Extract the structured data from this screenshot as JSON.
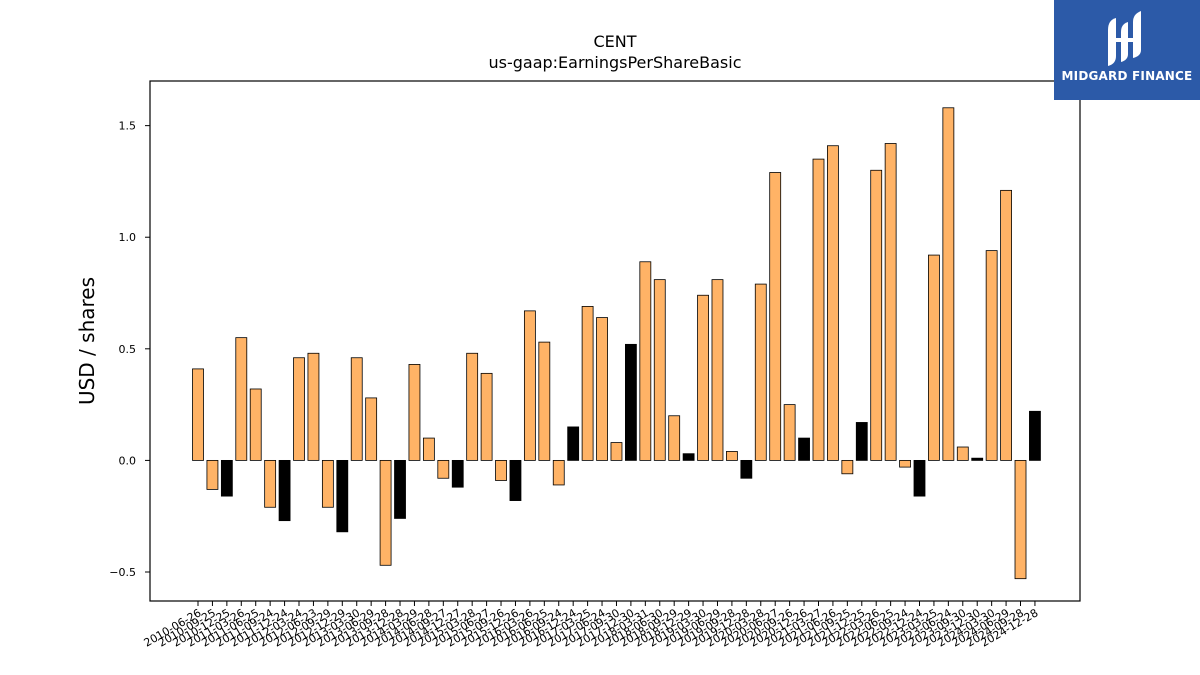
{
  "chart_title": "CENT",
  "chart_subtitle": "us-gaap:EarningsPerShareBasic",
  "brand": {
    "name": "MIDGARD FINANCE",
    "color": "#2c5aa8"
  },
  "colors": {
    "bar_primary": "#ffb366",
    "bar_alternate": "#000000",
    "bar_edge": "#000000"
  },
  "chart_data": {
    "type": "bar",
    "title": "CENT",
    "subtitle": "us-gaap:EarningsPerShareBasic",
    "xlabel": "",
    "ylabel": "USD / shares",
    "ylim": [
      -0.63,
      1.7
    ],
    "yticks": [
      -0.5,
      0.0,
      0.5,
      1.0,
      1.5
    ],
    "ytick_labels": [
      "−0.5",
      "0.0",
      "0.5",
      "1.0",
      "1.5"
    ],
    "grid": false,
    "legend": "none",
    "categories": [
      "2010-06-26",
      "2010-09-25",
      "2010-12-25",
      "2011-03-26",
      "2011-06-25",
      "2011-09-24",
      "2011-12-24",
      "2012-03-24",
      "2012-06-23",
      "2012-09-29",
      "2012-12-29",
      "2013-03-30",
      "2013-06-29",
      "2013-09-28",
      "2013-12-28",
      "2014-03-29",
      "2014-06-28",
      "2014-09-27",
      "2014-12-27",
      "2015-03-28",
      "2015-06-27",
      "2015-09-26",
      "2015-12-26",
      "2016-03-26",
      "2016-06-25",
      "2016-09-24",
      "2016-12-24",
      "2017-03-25",
      "2017-06-24",
      "2017-09-30",
      "2017-12-30",
      "2018-03-31",
      "2018-06-30",
      "2018-09-29",
      "2018-12-29",
      "2019-03-30",
      "2019-06-29",
      "2019-09-28",
      "2019-12-28",
      "2020-03-28",
      "2020-06-27",
      "2020-09-26",
      "2020-12-26",
      "2021-03-27",
      "2021-06-26",
      "2021-09-25",
      "2021-12-25",
      "2022-03-26",
      "2022-06-25",
      "2022-09-24",
      "2022-12-24",
      "2023-03-25",
      "2023-06-24",
      "2023-09-30",
      "2023-12-30",
      "2024-03-30",
      "2024-06-29",
      "2024-09-28",
      "2024-12-28"
    ],
    "values": [
      0.41,
      -0.13,
      -0.16,
      0.55,
      0.32,
      -0.21,
      -0.27,
      0.46,
      0.48,
      -0.21,
      -0.32,
      0.46,
      0.28,
      -0.47,
      -0.26,
      0.43,
      0.1,
      -0.08,
      -0.12,
      0.48,
      0.39,
      -0.09,
      -0.18,
      0.67,
      0.53,
      -0.11,
      0.15,
      0.69,
      0.64,
      0.08,
      0.52,
      0.89,
      0.81,
      0.2,
      0.03,
      0.74,
      0.81,
      0.04,
      -0.08,
      0.79,
      1.29,
      0.25,
      0.1,
      1.35,
      1.41,
      -0.06,
      0.17,
      1.3,
      1.42,
      -0.03,
      -0.16,
      0.92,
      1.58,
      0.06,
      0.01,
      0.94,
      1.21,
      -0.53,
      0.22
    ],
    "bar_colors": [
      "#ffb366",
      "#ffb366",
      "#000000",
      "#ffb366",
      "#ffb366",
      "#ffb366",
      "#000000",
      "#ffb366",
      "#ffb366",
      "#ffb366",
      "#000000",
      "#ffb366",
      "#ffb366",
      "#ffb366",
      "#000000",
      "#ffb366",
      "#ffb366",
      "#ffb366",
      "#000000",
      "#ffb366",
      "#ffb366",
      "#ffb366",
      "#000000",
      "#ffb366",
      "#ffb366",
      "#ffb366",
      "#000000",
      "#ffb366",
      "#ffb366",
      "#ffb366",
      "#000000",
      "#ffb366",
      "#ffb366",
      "#ffb366",
      "#000000",
      "#ffb366",
      "#ffb366",
      "#ffb366",
      "#000000",
      "#ffb366",
      "#ffb366",
      "#ffb366",
      "#000000",
      "#ffb366",
      "#ffb366",
      "#ffb366",
      "#000000",
      "#ffb366",
      "#ffb366",
      "#ffb366",
      "#000000",
      "#ffb366",
      "#ffb366",
      "#ffb366",
      "#000000",
      "#ffb366",
      "#ffb366",
      "#ffb366",
      "#000000"
    ]
  }
}
